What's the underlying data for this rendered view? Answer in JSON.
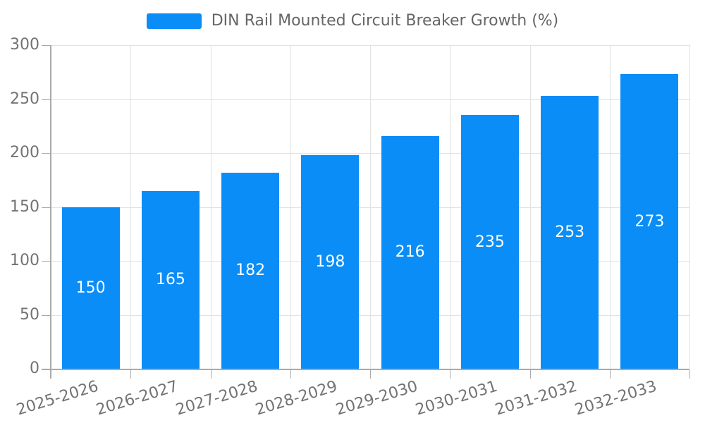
{
  "chart_data": {
    "type": "bar",
    "title": "DIN Rail Mounted Circuit Breaker Growth (%)",
    "categories": [
      "2025-2026",
      "2026-2027",
      "2027-2028",
      "2028-2029",
      "2029-2030",
      "2030-2031",
      "2031-2032",
      "2032-2033"
    ],
    "values": [
      150,
      165,
      182,
      198,
      216,
      235,
      253,
      273
    ],
    "xlabel": "",
    "ylabel": "",
    "ylim": [
      0,
      300
    ],
    "y_ticks": [
      0,
      50,
      100,
      150,
      200,
      250,
      300
    ],
    "grid": true,
    "data_labels": "inside-center",
    "x_tick_rotation_deg": -17,
    "legend": {
      "position": "top",
      "label": "DIN Rail Mounted Circuit Breaker Growth (%)"
    },
    "colors": {
      "bar": "#0A8DF7",
      "data_label": "#FFFFFF",
      "gridline": "#E2E2E2",
      "axis": "#AAAAAA",
      "tick_label": "#737373",
      "legend_text": "#666666",
      "background": "#FFFFFF"
    }
  }
}
